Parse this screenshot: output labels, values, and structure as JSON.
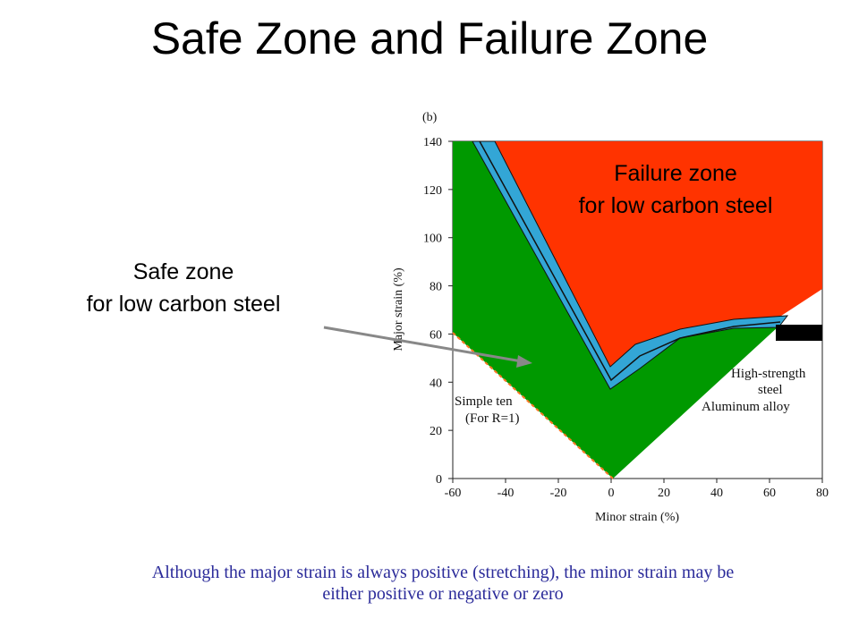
{
  "title": "Safe Zone and Failure Zone",
  "safe_callout": {
    "line1": "Safe zone",
    "line2": "for low carbon steel"
  },
  "failure_callout": {
    "line1": "Failure zone",
    "line2": "for low carbon steel"
  },
  "caption": {
    "line1": "Although the major strain is always positive (stretching), the minor strain may be",
    "line2": "either positive or negative or zero"
  },
  "colors": {
    "failure": "#ff3300",
    "safe": "#009900",
    "band": "#33a6d6",
    "arrow": "#888888",
    "caption": "#2b2b9a"
  },
  "chart_data": {
    "type": "area",
    "panel_label": "(b)",
    "xlabel": "Minor   strain   (%)",
    "ylabel": "Major   strain   (%)",
    "xlim": [
      -60,
      80
    ],
    "ylim": [
      0,
      140
    ],
    "x_ticks": [
      "-60",
      "-40",
      "-20",
      "0",
      "20",
      "40",
      "60",
      "80"
    ],
    "y_ticks": [
      "0",
      "20",
      "40",
      "60",
      "80",
      "100",
      "120",
      "140"
    ],
    "annotations": {
      "simple_tension": {
        "line1": "Simple   ten",
        "line2": "(For   R=1)"
      },
      "high_strength": {
        "line1": "High-strength",
        "line2": "steel"
      },
      "aluminum": "Aluminum   alloy"
    }
  }
}
